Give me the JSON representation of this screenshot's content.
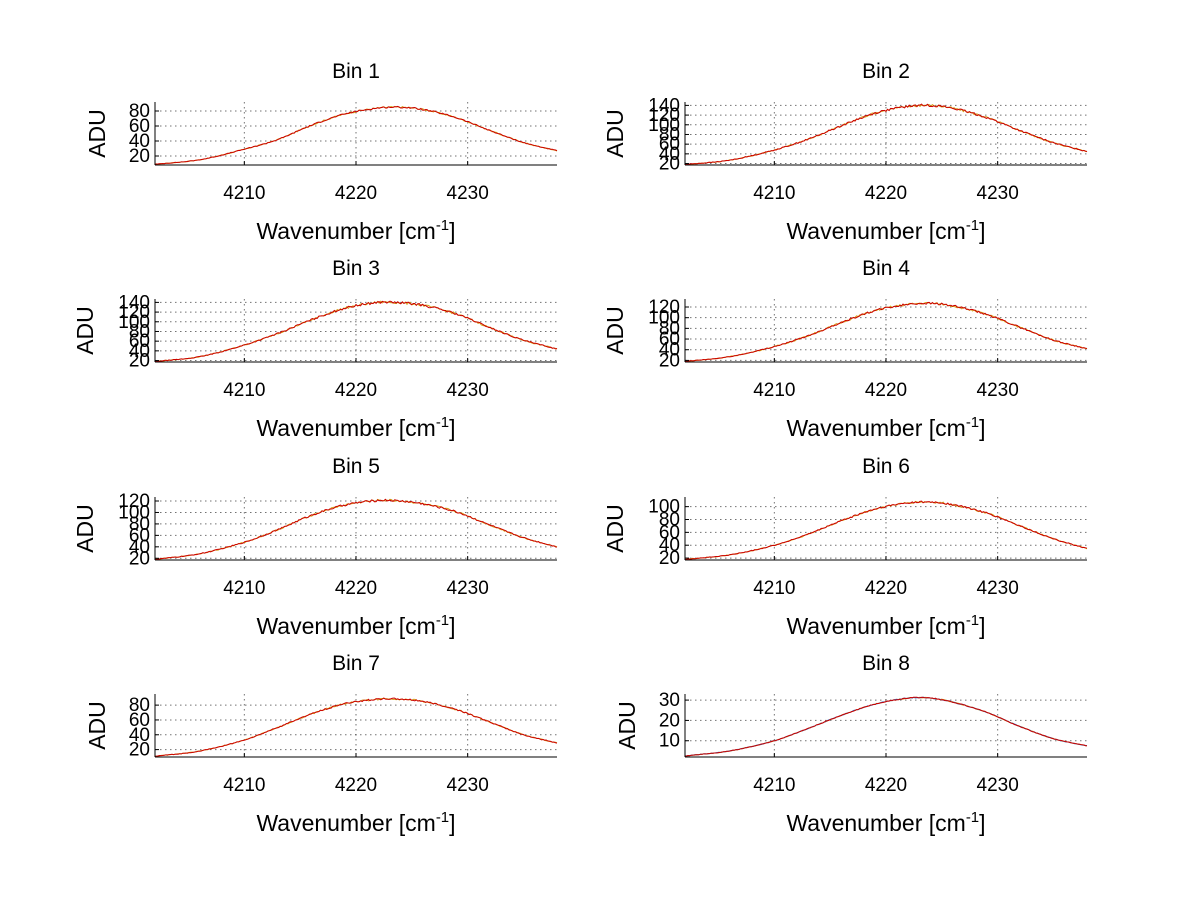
{
  "chart_data": [
    {
      "type": "line",
      "title": "Bin 1",
      "xlabel": "Wavenumber [cm-1]",
      "ylabel": "ADU",
      "xlim": [
        4202,
        4238
      ],
      "ylim": [
        8,
        92
      ],
      "xticks": [
        4210,
        4220,
        4230
      ],
      "yticks": [
        20,
        40,
        60,
        80
      ],
      "xtick_labels": [
        "4210",
        "4220",
        "4230"
      ],
      "ytick_labels": [
        "20",
        "40",
        "60",
        "80"
      ],
      "grid": true,
      "series": [
        {
          "color": "#d4a017",
          "x": [
            4202,
            4206,
            4210,
            4213,
            4216,
            4219,
            4222,
            4224,
            4226,
            4229,
            4232,
            4235,
            4238
          ],
          "y": [
            9,
            15,
            29,
            42,
            61,
            76,
            84,
            85,
            82,
            71,
            54,
            38,
            27
          ]
        },
        {
          "color": "#cc0000",
          "x": [
            4202,
            4206,
            4210,
            4213,
            4216,
            4219,
            4222,
            4224,
            4226,
            4229,
            4232,
            4235,
            4238
          ],
          "y": [
            9,
            15,
            29,
            42,
            61,
            76,
            84,
            85,
            82,
            71,
            54,
            38,
            27
          ]
        }
      ]
    },
    {
      "type": "line",
      "title": "Bin 2",
      "xlabel": "Wavenumber [cm-1]",
      "ylabel": "ADU",
      "xlim": [
        4202,
        4238
      ],
      "ylim": [
        17,
        147
      ],
      "xticks": [
        4210,
        4220,
        4230
      ],
      "yticks": [
        20,
        40,
        60,
        80,
        100,
        120,
        140
      ],
      "xtick_labels": [
        "4210",
        "4220",
        "4230"
      ],
      "ytick_labels": [
        "20",
        "40",
        "60",
        "80",
        "100",
        "120",
        "140"
      ],
      "grid": true,
      "series": [
        {
          "color": "#d4a017",
          "x": [
            4202,
            4206,
            4210,
            4213,
            4216,
            4219,
            4222,
            4224,
            4226,
            4229,
            4232,
            4235,
            4238
          ],
          "y": [
            18,
            27,
            48,
            70,
            98,
            124,
            138,
            140,
            134,
            115,
            88,
            63,
            45
          ]
        },
        {
          "color": "#cc0000",
          "x": [
            4202,
            4206,
            4210,
            4213,
            4216,
            4219,
            4222,
            4224,
            4226,
            4229,
            4232,
            4235,
            4238
          ],
          "y": [
            18,
            27,
            48,
            70,
            98,
            124,
            138,
            140,
            134,
            115,
            88,
            63,
            45
          ]
        }
      ]
    },
    {
      "type": "line",
      "title": "Bin 3",
      "xlabel": "Wavenumber [cm-1]",
      "ylabel": "ADU",
      "xlim": [
        4202,
        4238
      ],
      "ylim": [
        17,
        147
      ],
      "xticks": [
        4210,
        4220,
        4230
      ],
      "yticks": [
        20,
        40,
        60,
        80,
        100,
        120,
        140
      ],
      "xtick_labels": [
        "4210",
        "4220",
        "4230"
      ],
      "ytick_labels": [
        "20",
        "40",
        "60",
        "80",
        "100",
        "120",
        "140"
      ],
      "grid": true,
      "series": [
        {
          "color": "#d4a017",
          "x": [
            4202,
            4206,
            4210,
            4213,
            4216,
            4219,
            4222,
            4224,
            4226,
            4229,
            4232,
            4235,
            4238
          ],
          "y": [
            18,
            28,
            52,
            76,
            104,
            128,
            140,
            139,
            134,
            116,
            88,
            62,
            44
          ]
        },
        {
          "color": "#cc0000",
          "x": [
            4202,
            4206,
            4210,
            4213,
            4216,
            4219,
            4222,
            4224,
            4226,
            4229,
            4232,
            4235,
            4238
          ],
          "y": [
            18,
            28,
            52,
            76,
            104,
            128,
            140,
            139,
            134,
            116,
            88,
            62,
            44
          ]
        }
      ]
    },
    {
      "type": "line",
      "title": "Bin 4",
      "xlabel": "Wavenumber [cm-1]",
      "ylabel": "ADU",
      "xlim": [
        4202,
        4238
      ],
      "ylim": [
        17,
        135
      ],
      "xticks": [
        4210,
        4220,
        4230
      ],
      "yticks": [
        20,
        40,
        60,
        80,
        100,
        120
      ],
      "xtick_labels": [
        "4210",
        "4220",
        "4230"
      ],
      "ytick_labels": [
        "20",
        "40",
        "60",
        "80",
        "100",
        "120"
      ],
      "grid": true,
      "series": [
        {
          "color": "#d4a017",
          "x": [
            4202,
            4206,
            4210,
            4213,
            4216,
            4219,
            4222,
            4224,
            4226,
            4229,
            4232,
            4235,
            4238
          ],
          "y": [
            18,
            27,
            46,
            66,
            91,
            113,
            125,
            127,
            122,
            106,
            82,
            58,
            42
          ]
        },
        {
          "color": "#cc0000",
          "x": [
            4202,
            4206,
            4210,
            4213,
            4216,
            4219,
            4222,
            4224,
            4226,
            4229,
            4232,
            4235,
            4238
          ],
          "y": [
            18,
            27,
            46,
            66,
            91,
            113,
            125,
            127,
            122,
            106,
            82,
            58,
            42
          ]
        }
      ]
    },
    {
      "type": "line",
      "title": "Bin 5",
      "xlabel": "Wavenumber [cm-1]",
      "ylabel": "ADU",
      "xlim": [
        4202,
        4238
      ],
      "ylim": [
        17,
        127
      ],
      "xticks": [
        4210,
        4220,
        4230
      ],
      "yticks": [
        20,
        40,
        60,
        80,
        100,
        120
      ],
      "xtick_labels": [
        "4210",
        "4220",
        "4230"
      ],
      "ytick_labels": [
        "20",
        "40",
        "60",
        "80",
        "100",
        "120"
      ],
      "grid": true,
      "series": [
        {
          "color": "#d4a017",
          "x": [
            4202,
            4206,
            4210,
            4213,
            4216,
            4219,
            4222,
            4224,
            4226,
            4229,
            4232,
            4235,
            4238
          ],
          "y": [
            18,
            28,
            48,
            70,
            95,
            113,
            121,
            120,
            115,
            101,
            78,
            56,
            40
          ]
        },
        {
          "color": "#cc0000",
          "x": [
            4202,
            4206,
            4210,
            4213,
            4216,
            4219,
            4222,
            4224,
            4226,
            4229,
            4232,
            4235,
            4238
          ],
          "y": [
            18,
            28,
            48,
            70,
            95,
            113,
            121,
            120,
            115,
            101,
            78,
            56,
            40
          ]
        }
      ]
    },
    {
      "type": "line",
      "title": "Bin 6",
      "xlabel": "Wavenumber [cm-1]",
      "ylabel": "ADU",
      "xlim": [
        4202,
        4238
      ],
      "ylim": [
        17,
        115
      ],
      "xticks": [
        4210,
        4220,
        4230
      ],
      "yticks": [
        20,
        40,
        60,
        80,
        100
      ],
      "xtick_labels": [
        "4210",
        "4220",
        "4230"
      ],
      "ytick_labels": [
        "20",
        "40",
        "60",
        "80",
        "100"
      ],
      "grid": true,
      "series": [
        {
          "color": "#d4a017",
          "x": [
            4202,
            4206,
            4210,
            4213,
            4216,
            4219,
            4222,
            4224,
            4226,
            4229,
            4232,
            4235,
            4238
          ],
          "y": [
            18,
            25,
            40,
            57,
            78,
            96,
            106,
            107,
            103,
            90,
            70,
            50,
            35
          ]
        },
        {
          "color": "#cc0000",
          "x": [
            4202,
            4206,
            4210,
            4213,
            4216,
            4219,
            4222,
            4224,
            4226,
            4229,
            4232,
            4235,
            4238
          ],
          "y": [
            18,
            25,
            40,
            57,
            78,
            96,
            106,
            107,
            103,
            90,
            70,
            50,
            35
          ]
        }
      ]
    },
    {
      "type": "line",
      "title": "Bin 7",
      "xlabel": "Wavenumber [cm-1]",
      "ylabel": "ADU",
      "xlim": [
        4202,
        4238
      ],
      "ylim": [
        10,
        95
      ],
      "xticks": [
        4210,
        4220,
        4230
      ],
      "yticks": [
        20,
        40,
        60,
        80
      ],
      "xtick_labels": [
        "4210",
        "4220",
        "4230"
      ],
      "ytick_labels": [
        "20",
        "40",
        "60",
        "80"
      ],
      "grid": true,
      "series": [
        {
          "color": "#d4a017",
          "x": [
            4202,
            4206,
            4210,
            4213,
            4216,
            4219,
            4222,
            4224,
            4226,
            4229,
            4232,
            4235,
            4238
          ],
          "y": [
            11,
            18,
            33,
            50,
            68,
            82,
            88,
            88,
            85,
            74,
            57,
            40,
            29
          ]
        },
        {
          "color": "#cc0000",
          "x": [
            4202,
            4206,
            4210,
            4213,
            4216,
            4219,
            4222,
            4224,
            4226,
            4229,
            4232,
            4235,
            4238
          ],
          "y": [
            11,
            18,
            33,
            50,
            68,
            82,
            88,
            88,
            85,
            74,
            57,
            40,
            29
          ]
        }
      ]
    },
    {
      "type": "line",
      "title": "Bin 8",
      "xlabel": "Wavenumber [cm-1]",
      "ylabel": "ADU",
      "xlim": [
        4202,
        4238
      ],
      "ylim": [
        2,
        33
      ],
      "xticks": [
        4210,
        4220,
        4230
      ],
      "yticks": [
        10,
        20,
        30
      ],
      "xtick_labels": [
        "4210",
        "4220",
        "4230"
      ],
      "ytick_labels": [
        "10",
        "20",
        "30"
      ],
      "grid": true,
      "series": [
        {
          "color": "#d4a017",
          "x": [
            4202,
            4206,
            4210,
            4213,
            4216,
            4219,
            4222,
            4224,
            4226,
            4229,
            4232,
            4235,
            4238
          ],
          "y": [
            2.5,
            5,
            10,
            16,
            22.5,
            28,
            31,
            31,
            29,
            24,
            17,
            11,
            7.5
          ]
        },
        {
          "color": "#2a6cc4",
          "x": [
            4202,
            4206,
            4210,
            4213,
            4216,
            4219,
            4222,
            4224,
            4226,
            4229,
            4232,
            4235,
            4238
          ],
          "y": [
            2.5,
            5,
            10,
            16,
            22.5,
            28,
            31,
            31,
            29,
            24,
            17,
            11,
            7.5
          ]
        },
        {
          "color": "#cc0000",
          "x": [
            4202,
            4206,
            4210,
            4213,
            4216,
            4219,
            4222,
            4224,
            4226,
            4229,
            4232,
            4235,
            4238
          ],
          "y": [
            2.5,
            5,
            10,
            16,
            22.5,
            28,
            31,
            31,
            29,
            24,
            17,
            11,
            7.5
          ]
        }
      ]
    }
  ]
}
